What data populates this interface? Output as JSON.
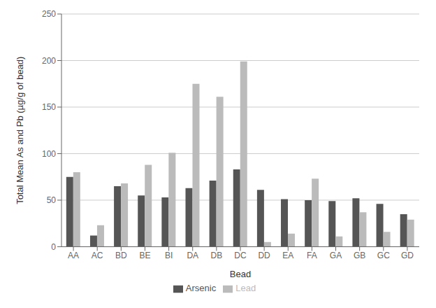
{
  "chart_data": {
    "type": "bar",
    "categories": [
      "AA",
      "AC",
      "BD",
      "BE",
      "BI",
      "DA",
      "DB",
      "DC",
      "DD",
      "EA",
      "FA",
      "GA",
      "GB",
      "GC",
      "GD"
    ],
    "series": [
      {
        "name": "Arsenic",
        "color": "#555555",
        "values": [
          75,
          12,
          65,
          55,
          53,
          63,
          71,
          83,
          61,
          51,
          50,
          49,
          52,
          46,
          35
        ]
      },
      {
        "name": "Lead",
        "color": "#bbbbbb",
        "values": [
          80,
          23,
          68,
          88,
          101,
          175,
          161,
          199,
          5,
          14,
          73,
          11,
          37,
          16,
          29
        ]
      }
    ],
    "xlabel": "Bead",
    "ylabel": "Total Mean As and Pb (µg/g of bead)",
    "ylim": [
      0,
      250
    ],
    "yticks": [
      0,
      50,
      100,
      150,
      200,
      250
    ],
    "grid": true,
    "legend": "bottom"
  }
}
